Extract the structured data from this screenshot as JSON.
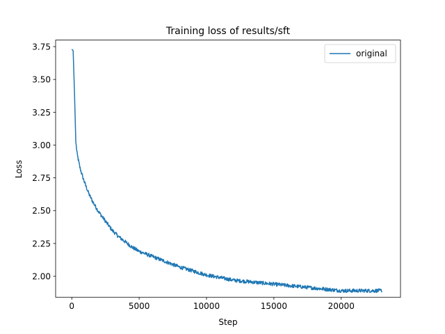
{
  "chart_data": {
    "type": "line",
    "title": "Training loss of results/sft",
    "xlabel": "Step",
    "ylabel": "Loss",
    "xlim": [
      -1200,
      24400
    ],
    "ylim": [
      1.84,
      3.8
    ],
    "xticks": [
      0,
      5000,
      10000,
      15000,
      20000
    ],
    "xtick_labels": [
      "0",
      "5000",
      "10000",
      "15000",
      "20000"
    ],
    "yticks": [
      2.0,
      2.25,
      2.5,
      2.75,
      3.0,
      3.25,
      3.5,
      3.75
    ],
    "ytick_labels": [
      "2.00",
      "2.25",
      "2.50",
      "2.75",
      "3.00",
      "3.25",
      "3.50",
      "3.75"
    ],
    "legend_position": "top-right",
    "grid": false,
    "series": [
      {
        "name": "original",
        "color": "#1f77b4",
        "x": [
          0,
          100,
          200,
          300,
          400,
          600,
          800,
          1000,
          1300,
          1600,
          2000,
          2500,
          3000,
          3500,
          4000,
          4500,
          5000,
          6000,
          7000,
          8000,
          9000,
          10000,
          11000,
          12000,
          13000,
          14000,
          15000,
          16000,
          17000,
          18000,
          19000,
          20000,
          21000,
          22000,
          23000
        ],
        "y": [
          3.73,
          3.72,
          3.4,
          3.02,
          2.93,
          2.83,
          2.76,
          2.7,
          2.62,
          2.56,
          2.49,
          2.42,
          2.35,
          2.3,
          2.26,
          2.22,
          2.19,
          2.15,
          2.11,
          2.07,
          2.04,
          2.01,
          1.99,
          1.97,
          1.96,
          1.95,
          1.94,
          1.93,
          1.92,
          1.91,
          1.9,
          1.89,
          1.89,
          1.89,
          1.89
        ]
      }
    ]
  }
}
